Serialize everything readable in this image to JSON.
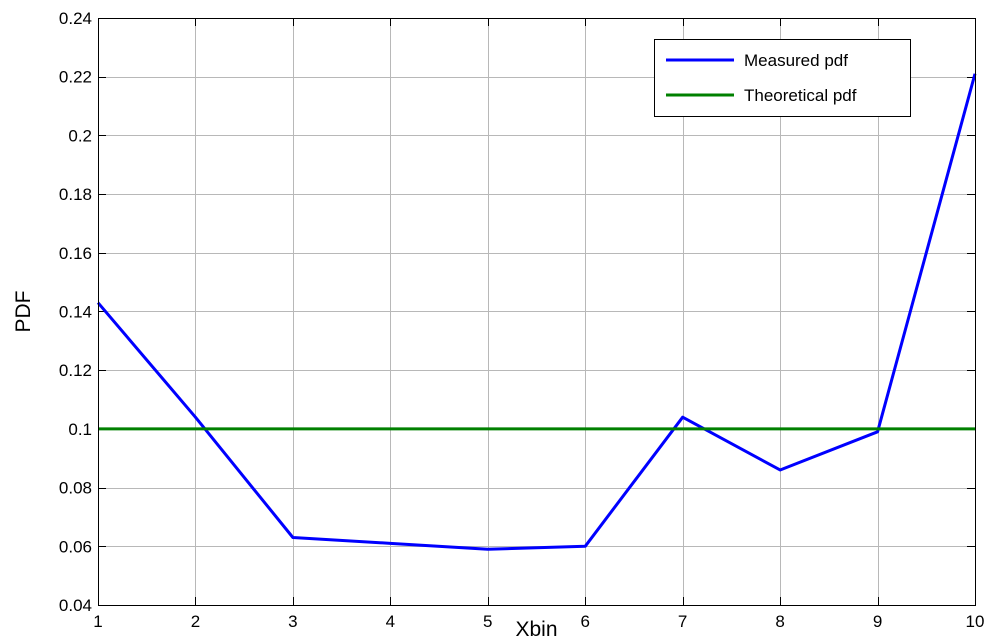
{
  "chart_data": {
    "type": "line",
    "title": "",
    "xlabel": "Xbin",
    "ylabel": "PDF",
    "xlim": [
      1,
      10
    ],
    "ylim": [
      0.04,
      0.24
    ],
    "x_ticks": [
      "1",
      "2",
      "3",
      "4",
      "5",
      "6",
      "7",
      "8",
      "9",
      "10"
    ],
    "y_ticks": [
      "0.04",
      "0.06",
      "0.08",
      "0.1",
      "0.12",
      "0.14",
      "0.16",
      "0.18",
      "0.2",
      "0.22",
      "0.24"
    ],
    "grid": true,
    "legend_position": "top-right",
    "series": [
      {
        "name": "Measured pdf",
        "color": "#0000ff",
        "x": [
          1,
          2,
          3,
          4,
          5,
          6,
          7,
          8,
          9,
          10
        ],
        "y": [
          0.143,
          0.104,
          0.063,
          0.061,
          0.059,
          0.06,
          0.104,
          0.086,
          0.099,
          0.221
        ]
      },
      {
        "name": "Theoretical pdf",
        "color": "#008000",
        "x": [
          1,
          2,
          3,
          4,
          5,
          6,
          7,
          8,
          9,
          10
        ],
        "y": [
          0.1,
          0.1,
          0.1,
          0.1,
          0.1,
          0.1,
          0.1,
          0.1,
          0.1,
          0.1
        ]
      }
    ]
  }
}
